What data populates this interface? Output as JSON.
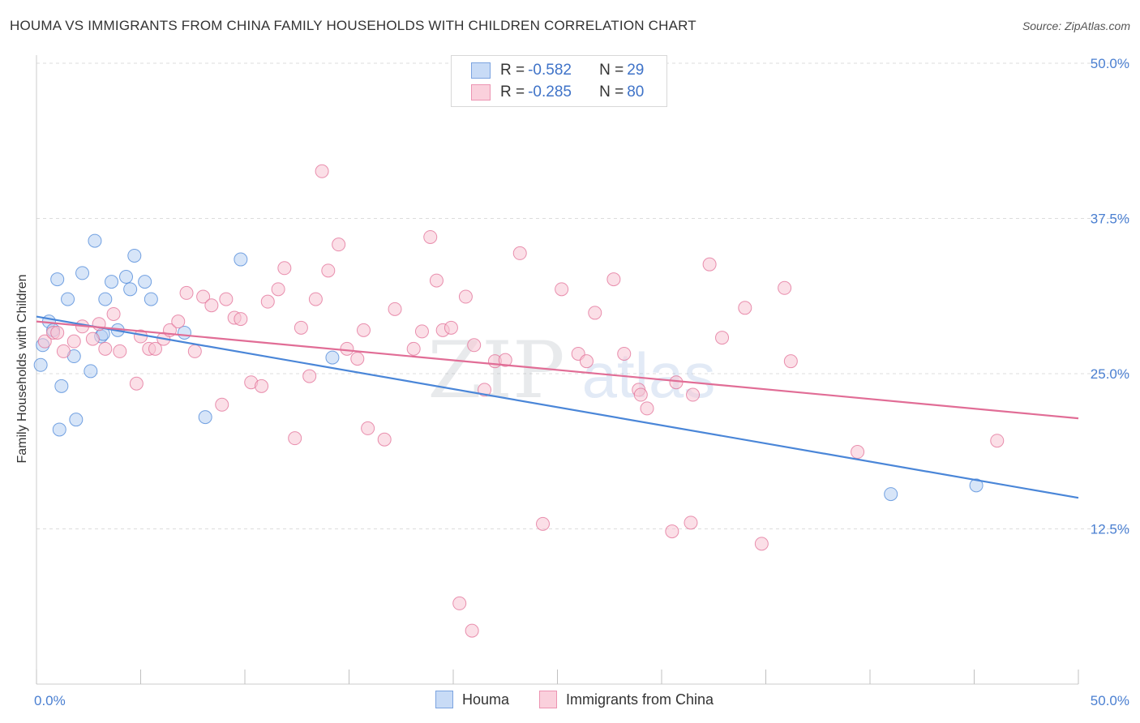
{
  "title": "HOUMA VS IMMIGRANTS FROM CHINA FAMILY HOUSEHOLDS WITH CHILDREN CORRELATION CHART",
  "source": "Source: ZipAtlas.com",
  "watermark": {
    "zip": "ZIP",
    "atlas": "atlas"
  },
  "legend": [
    {
      "label": "R = ",
      "r": "-0.582",
      "n_label": "N = ",
      "n": "29",
      "color": "#aecbf2"
    },
    {
      "label": "R = ",
      "r": "-0.285",
      "n_label": "N = ",
      "n": "80",
      "color": "#f7b9cc"
    }
  ],
  "bottom_legend": [
    {
      "label": "Houma",
      "color": "#aecbf2"
    },
    {
      "label": "Immigrants from China",
      "color": "#f7b9cc"
    }
  ],
  "chart_data": {
    "type": "scatter",
    "title": "HOUMA VS IMMIGRANTS FROM CHINA FAMILY HOUSEHOLDS WITH CHILDREN CORRELATION CHART",
    "xlabel": "",
    "ylabel": "Family Households with Children",
    "xlim": [
      0,
      50
    ],
    "ylim": [
      0,
      50
    ],
    "x_tick_labels": [
      "0.0%",
      "50.0%"
    ],
    "y_ticks": [
      12.5,
      25.0,
      37.5,
      50.0
    ],
    "y_tick_labels": [
      "12.5%",
      "25.0%",
      "37.5%",
      "50.0%"
    ],
    "grid": true,
    "series": [
      {
        "name": "Houma",
        "color": "#4a86d8",
        "fill": "#b7d0f2",
        "trend": {
          "x": [
            0,
            50
          ],
          "y": [
            29.6,
            15.0
          ]
        },
        "points": [
          [
            0.3,
            27.3
          ],
          [
            0.2,
            25.7
          ],
          [
            0.6,
            29.2
          ],
          [
            0.8,
            28.5
          ],
          [
            1.0,
            32.6
          ],
          [
            1.2,
            24.0
          ],
          [
            1.5,
            31.0
          ],
          [
            1.8,
            26.4
          ],
          [
            1.9,
            21.3
          ],
          [
            2.2,
            33.1
          ],
          [
            2.6,
            25.2
          ],
          [
            2.8,
            35.7
          ],
          [
            3.1,
            28.0
          ],
          [
            3.3,
            31.0
          ],
          [
            3.6,
            32.4
          ],
          [
            3.9,
            28.5
          ],
          [
            4.3,
            32.8
          ],
          [
            4.5,
            31.8
          ],
          [
            4.7,
            34.5
          ],
          [
            5.2,
            32.4
          ],
          [
            5.5,
            31.0
          ],
          [
            7.1,
            28.3
          ],
          [
            8.1,
            21.5
          ],
          [
            9.8,
            34.2
          ],
          [
            14.2,
            26.3
          ],
          [
            41.0,
            15.3
          ],
          [
            45.1,
            16.0
          ],
          [
            1.1,
            20.5
          ],
          [
            3.2,
            28.2
          ]
        ]
      },
      {
        "name": "Immigrants from China",
        "color": "#e16d96",
        "fill": "#f7c4d4",
        "trend": {
          "x": [
            0,
            50
          ],
          "y": [
            29.2,
            21.4
          ]
        },
        "points": [
          [
            0.4,
            27.6
          ],
          [
            0.8,
            28.3
          ],
          [
            1.3,
            26.8
          ],
          [
            1.8,
            27.6
          ],
          [
            2.2,
            28.8
          ],
          [
            2.7,
            27.8
          ],
          [
            3.0,
            29.0
          ],
          [
            3.3,
            27.0
          ],
          [
            3.7,
            29.8
          ],
          [
            4.0,
            26.8
          ],
          [
            4.8,
            24.2
          ],
          [
            5.0,
            28.0
          ],
          [
            5.4,
            27.0
          ],
          [
            5.7,
            27.0
          ],
          [
            6.1,
            27.8
          ],
          [
            6.4,
            28.5
          ],
          [
            6.8,
            29.2
          ],
          [
            7.2,
            31.5
          ],
          [
            7.6,
            26.8
          ],
          [
            8.0,
            31.2
          ],
          [
            8.4,
            30.5
          ],
          [
            8.9,
            22.5
          ],
          [
            9.1,
            31.0
          ],
          [
            9.5,
            29.5
          ],
          [
            9.8,
            29.4
          ],
          [
            10.3,
            24.3
          ],
          [
            10.8,
            24.0
          ],
          [
            11.1,
            30.8
          ],
          [
            11.6,
            31.8
          ],
          [
            11.9,
            33.5
          ],
          [
            12.4,
            19.8
          ],
          [
            12.7,
            28.7
          ],
          [
            13.1,
            24.8
          ],
          [
            13.4,
            31.0
          ],
          [
            13.7,
            41.3
          ],
          [
            14.0,
            33.3
          ],
          [
            14.5,
            35.4
          ],
          [
            14.9,
            27.0
          ],
          [
            15.4,
            26.2
          ],
          [
            15.7,
            28.5
          ],
          [
            15.9,
            20.6
          ],
          [
            16.7,
            19.7
          ],
          [
            17.2,
            30.2
          ],
          [
            18.1,
            27.0
          ],
          [
            18.5,
            28.4
          ],
          [
            18.9,
            36.0
          ],
          [
            19.2,
            32.5
          ],
          [
            19.5,
            28.5
          ],
          [
            19.9,
            28.7
          ],
          [
            20.6,
            31.2
          ],
          [
            21.0,
            27.3
          ],
          [
            21.5,
            23.7
          ],
          [
            22.0,
            26.0
          ],
          [
            22.5,
            26.1
          ],
          [
            23.2,
            34.7
          ],
          [
            24.3,
            12.9
          ],
          [
            25.2,
            31.8
          ],
          [
            26.0,
            26.6
          ],
          [
            26.4,
            26.0
          ],
          [
            26.8,
            29.9
          ],
          [
            27.7,
            32.6
          ],
          [
            28.2,
            26.6
          ],
          [
            28.9,
            23.7
          ],
          [
            29.0,
            23.3
          ],
          [
            29.3,
            22.2
          ],
          [
            30.5,
            12.3
          ],
          [
            30.7,
            24.3
          ],
          [
            31.5,
            23.3
          ],
          [
            31.4,
            13.0
          ],
          [
            32.3,
            33.8
          ],
          [
            32.9,
            27.9
          ],
          [
            34.0,
            30.3
          ],
          [
            34.8,
            11.3
          ],
          [
            35.9,
            31.9
          ],
          [
            36.2,
            26.0
          ],
          [
            39.4,
            18.7
          ],
          [
            46.1,
            19.6
          ],
          [
            20.3,
            6.5
          ],
          [
            20.9,
            4.3
          ],
          [
            1.0,
            28.3
          ]
        ]
      }
    ]
  }
}
